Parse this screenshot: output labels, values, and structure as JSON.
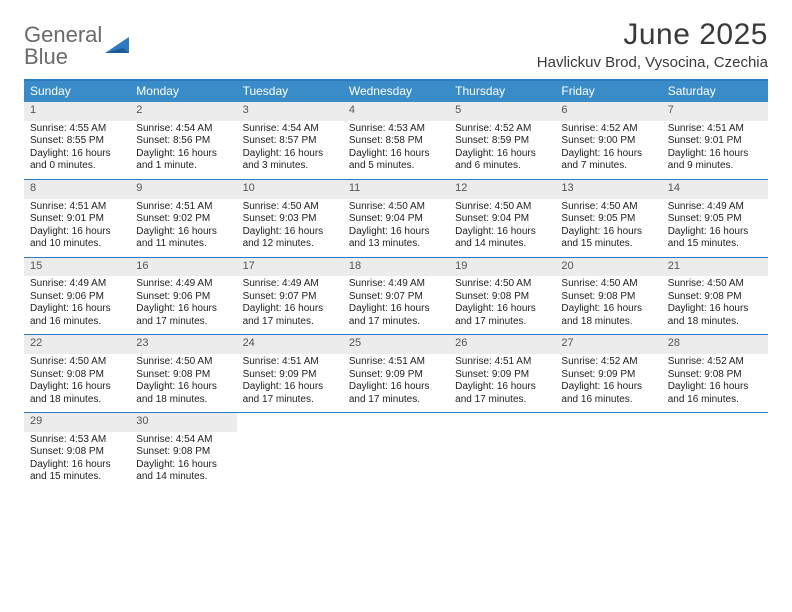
{
  "brand": {
    "line1": "General",
    "line2": "Blue"
  },
  "title": "June 2025",
  "location": "Havlickuv Brod, Vysocina, Czechia",
  "colors": {
    "header_bg": "#3a8cc9",
    "border": "#2e7ac0",
    "daynum_bg": "#ececec",
    "text": "#222222",
    "brand_gray": "#6a6a6a",
    "brand_blue": "#2e7ac0"
  },
  "weekdays": [
    "Sunday",
    "Monday",
    "Tuesday",
    "Wednesday",
    "Thursday",
    "Friday",
    "Saturday"
  ],
  "days": [
    {
      "n": 1,
      "sunrise": "4:55 AM",
      "sunset": "8:55 PM",
      "daylight": "16 hours and 0 minutes."
    },
    {
      "n": 2,
      "sunrise": "4:54 AM",
      "sunset": "8:56 PM",
      "daylight": "16 hours and 1 minute."
    },
    {
      "n": 3,
      "sunrise": "4:54 AM",
      "sunset": "8:57 PM",
      "daylight": "16 hours and 3 minutes."
    },
    {
      "n": 4,
      "sunrise": "4:53 AM",
      "sunset": "8:58 PM",
      "daylight": "16 hours and 5 minutes."
    },
    {
      "n": 5,
      "sunrise": "4:52 AM",
      "sunset": "8:59 PM",
      "daylight": "16 hours and 6 minutes."
    },
    {
      "n": 6,
      "sunrise": "4:52 AM",
      "sunset": "9:00 PM",
      "daylight": "16 hours and 7 minutes."
    },
    {
      "n": 7,
      "sunrise": "4:51 AM",
      "sunset": "9:01 PM",
      "daylight": "16 hours and 9 minutes."
    },
    {
      "n": 8,
      "sunrise": "4:51 AM",
      "sunset": "9:01 PM",
      "daylight": "16 hours and 10 minutes."
    },
    {
      "n": 9,
      "sunrise": "4:51 AM",
      "sunset": "9:02 PM",
      "daylight": "16 hours and 11 minutes."
    },
    {
      "n": 10,
      "sunrise": "4:50 AM",
      "sunset": "9:03 PM",
      "daylight": "16 hours and 12 minutes."
    },
    {
      "n": 11,
      "sunrise": "4:50 AM",
      "sunset": "9:04 PM",
      "daylight": "16 hours and 13 minutes."
    },
    {
      "n": 12,
      "sunrise": "4:50 AM",
      "sunset": "9:04 PM",
      "daylight": "16 hours and 14 minutes."
    },
    {
      "n": 13,
      "sunrise": "4:50 AM",
      "sunset": "9:05 PM",
      "daylight": "16 hours and 15 minutes."
    },
    {
      "n": 14,
      "sunrise": "4:49 AM",
      "sunset": "9:05 PM",
      "daylight": "16 hours and 15 minutes."
    },
    {
      "n": 15,
      "sunrise": "4:49 AM",
      "sunset": "9:06 PM",
      "daylight": "16 hours and 16 minutes."
    },
    {
      "n": 16,
      "sunrise": "4:49 AM",
      "sunset": "9:06 PM",
      "daylight": "16 hours and 17 minutes."
    },
    {
      "n": 17,
      "sunrise": "4:49 AM",
      "sunset": "9:07 PM",
      "daylight": "16 hours and 17 minutes."
    },
    {
      "n": 18,
      "sunrise": "4:49 AM",
      "sunset": "9:07 PM",
      "daylight": "16 hours and 17 minutes."
    },
    {
      "n": 19,
      "sunrise": "4:50 AM",
      "sunset": "9:08 PM",
      "daylight": "16 hours and 17 minutes."
    },
    {
      "n": 20,
      "sunrise": "4:50 AM",
      "sunset": "9:08 PM",
      "daylight": "16 hours and 18 minutes."
    },
    {
      "n": 21,
      "sunrise": "4:50 AM",
      "sunset": "9:08 PM",
      "daylight": "16 hours and 18 minutes."
    },
    {
      "n": 22,
      "sunrise": "4:50 AM",
      "sunset": "9:08 PM",
      "daylight": "16 hours and 18 minutes."
    },
    {
      "n": 23,
      "sunrise": "4:50 AM",
      "sunset": "9:08 PM",
      "daylight": "16 hours and 18 minutes."
    },
    {
      "n": 24,
      "sunrise": "4:51 AM",
      "sunset": "9:09 PM",
      "daylight": "16 hours and 17 minutes."
    },
    {
      "n": 25,
      "sunrise": "4:51 AM",
      "sunset": "9:09 PM",
      "daylight": "16 hours and 17 minutes."
    },
    {
      "n": 26,
      "sunrise": "4:51 AM",
      "sunset": "9:09 PM",
      "daylight": "16 hours and 17 minutes."
    },
    {
      "n": 27,
      "sunrise": "4:52 AM",
      "sunset": "9:09 PM",
      "daylight": "16 hours and 16 minutes."
    },
    {
      "n": 28,
      "sunrise": "4:52 AM",
      "sunset": "9:08 PM",
      "daylight": "16 hours and 16 minutes."
    },
    {
      "n": 29,
      "sunrise": "4:53 AM",
      "sunset": "9:08 PM",
      "daylight": "16 hours and 15 minutes."
    },
    {
      "n": 30,
      "sunrise": "4:54 AM",
      "sunset": "9:08 PM",
      "daylight": "16 hours and 14 minutes."
    }
  ],
  "labels": {
    "sunrise": "Sunrise:",
    "sunset": "Sunset:",
    "daylight": "Daylight:"
  },
  "layout": {
    "start_weekday": 0,
    "days_in_month": 30,
    "cols": 7
  }
}
